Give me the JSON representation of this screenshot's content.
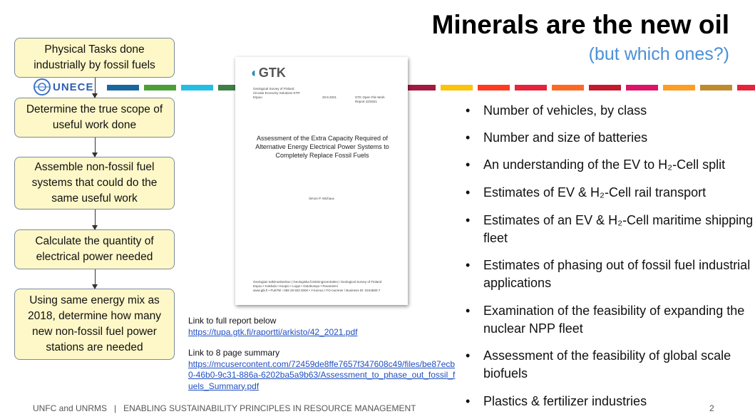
{
  "header": {
    "title": "Minerals are the new oil",
    "subtitle": "(but which ones?)"
  },
  "logo": {
    "text": "UNECE"
  },
  "flow": {
    "steps": [
      "Physical Tasks done industrially by fossil fuels",
      "Determine the true scope of useful work done",
      "Assemble non-fossil fuel systems that could do the same useful work",
      "Calculate the quantity of electrical power needed",
      "Using same energy mix as 2018, determine how many new non-fossil fuel power stations are needed"
    ]
  },
  "report": {
    "brand": "GTK",
    "org_lines": [
      "Geological Survey of Finland",
      "Circular Economy Solutions KTR",
      "Espoo"
    ],
    "date": "20.8.2021",
    "series": "GTK Open File Work Report 42/2021",
    "title": "Assessment of the Extra Capacity Required of Alternative Energy Electrical Power Systems to Completely Replace Fossil Fuels",
    "author": "Simon P. Michaux",
    "footer_lines": [
      "Geologian tutkimuskeskus | Geologiska forskningscentralen | Geological Survey of Finland",
      "Espoo • Kokkola • Kuopio • Loppi • Outokumpu • Rovaniemi",
      "www.gtk.fi • Puh/Tel +358 29 503 0000 • Y-tunnus / FO-nummer / Business ID: 0244680-7"
    ]
  },
  "links": {
    "full_label": "Link to full report below",
    "full_url": "https://tupa.gtk.fi/raportti/arkisto/42_2021.pdf",
    "summary_label": "Link to 8 page summary",
    "summary_url": "https://mcusercontent.com/72459de8ffe7657f347608c49/files/be87ecb0-46b0-9c31-886a-6202ba5a9b63/Assessment_to_phase_out_fossil_fuels_Summary.pdf"
  },
  "bullets": [
    "Number of vehicles, by class",
    "Number and size of batteries",
    "An understanding of the EV to H₂-Cell split",
    "Estimates of EV & H₂-Cell rail transport",
    "Estimates of an EV & H₂-Cell maritime shipping fleet",
    "Estimates of phasing out of fossil fuel industrial applications",
    "Examination of the feasibility of expanding the nuclear NPP fleet",
    "Assessment of the feasibility of global scale biofuels",
    "Plastics & fertilizer industries"
  ],
  "footer": {
    "text": "UNFC and UNRMS   |   ENABLING SUSTAINABILITY PRINCIPLES IN RESOURCE MANAGEMENT",
    "page": "2"
  }
}
